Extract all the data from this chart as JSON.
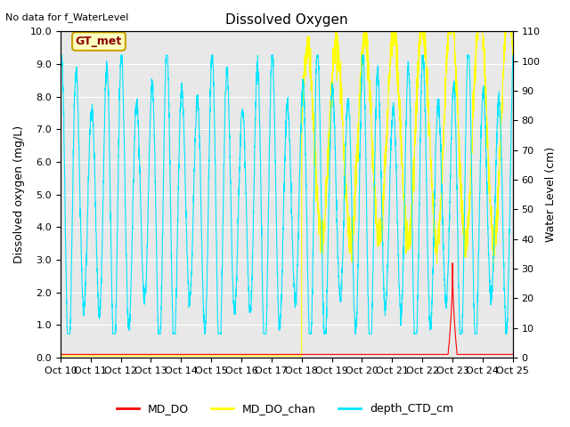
{
  "title": "Dissolved Oxygen",
  "ylabel_left": "Dissolved oxygen (mg/L)",
  "ylabel_right": "Water Level (cm)",
  "no_data_text": "No data for f_WaterLevel",
  "gt_met_label": "GT_met",
  "ylim_left": [
    0.0,
    10.0
  ],
  "ylim_right": [
    0,
    110
  ],
  "xlim": [
    0,
    15
  ],
  "xtick_labels": [
    "Oct 10",
    "Oct 11",
    "Oct 12",
    "Oct 13",
    "Oct 14",
    "Oct 15",
    "Oct 16",
    "Oct 17",
    "Oct 18",
    "Oct 19",
    "Oct 20",
    "Oct 21",
    "Oct 22",
    "Oct 23",
    "Oct 24",
    "Oct 25"
  ],
  "bg_color": "#e8e8e8",
  "fig_color": "#ffffff",
  "md_do_color": "#ff0000",
  "md_do_chan_color": "#ffff00",
  "depth_ctd_color": "#00e5ff",
  "legend_labels": [
    "MD_DO",
    "MD_DO_chan",
    "depth_CTD_cm"
  ],
  "title_fontsize": 11,
  "axis_fontsize": 9,
  "tick_fontsize": 8
}
